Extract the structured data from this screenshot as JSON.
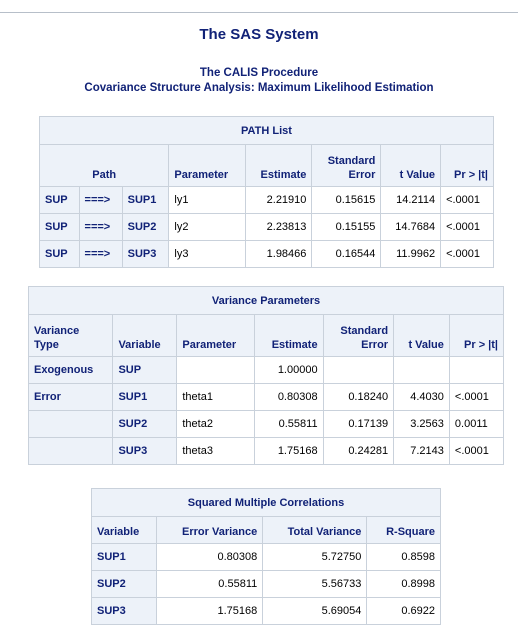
{
  "title": "The SAS System",
  "procedure": "The CALIS Procedure",
  "subtitle": "Covariance Structure Analysis: Maximum Likelihood Estimation",
  "path_list": {
    "caption": "PATH List",
    "headers": {
      "path": "Path",
      "parameter": "Parameter",
      "estimate": "Estimate",
      "stderr_line1": "Standard",
      "stderr_line2": "Error",
      "tvalue": "t Value",
      "pr": "Pr > |t|"
    },
    "rows": [
      {
        "from": "SUP",
        "arrow": "===>",
        "to": "SUP1",
        "parameter": "ly1",
        "estimate": "2.21910",
        "stderr": "0.15615",
        "tvalue": "14.2114",
        "pr": "<.0001"
      },
      {
        "from": "SUP",
        "arrow": "===>",
        "to": "SUP2",
        "parameter": "ly2",
        "estimate": "2.23813",
        "stderr": "0.15155",
        "tvalue": "14.7684",
        "pr": "<.0001"
      },
      {
        "from": "SUP",
        "arrow": "===>",
        "to": "SUP3",
        "parameter": "ly3",
        "estimate": "1.98466",
        "stderr": "0.16544",
        "tvalue": "11.9962",
        "pr": "<.0001"
      }
    ]
  },
  "variance": {
    "caption": "Variance Parameters",
    "headers": {
      "type_line1": "Variance",
      "type_line2": "Type",
      "variable": "Variable",
      "parameter": "Parameter",
      "estimate": "Estimate",
      "stderr_line1": "Standard",
      "stderr_line2": "Error",
      "tvalue": "t Value",
      "pr": "Pr > |t|"
    },
    "rows": [
      {
        "type": "Exogenous",
        "variable": "SUP",
        "parameter": "",
        "estimate": "1.00000",
        "stderr": "",
        "tvalue": "",
        "pr": ""
      },
      {
        "type": "Error",
        "variable": "SUP1",
        "parameter": "theta1",
        "estimate": "0.80308",
        "stderr": "0.18240",
        "tvalue": "4.4030",
        "pr": "<.0001"
      },
      {
        "type": "",
        "variable": "SUP2",
        "parameter": "theta2",
        "estimate": "0.55811",
        "stderr": "0.17139",
        "tvalue": "3.2563",
        "pr": "0.0011"
      },
      {
        "type": "",
        "variable": "SUP3",
        "parameter": "theta3",
        "estimate": "1.75168",
        "stderr": "0.24281",
        "tvalue": "7.2143",
        "pr": "<.0001"
      }
    ]
  },
  "smc": {
    "caption": "Squared Multiple Correlations",
    "headers": {
      "variable": "Variable",
      "error_variance": "Error Variance",
      "total_variance": "Total Variance",
      "rsquare": "R-Square"
    },
    "rows": [
      {
        "variable": "SUP1",
        "error_variance": "0.80308",
        "total_variance": "5.72750",
        "rsquare": "0.8598"
      },
      {
        "variable": "SUP2",
        "error_variance": "0.55811",
        "total_variance": "5.56733",
        "rsquare": "0.8998"
      },
      {
        "variable": "SUP3",
        "error_variance": "1.75168",
        "total_variance": "5.69054",
        "rsquare": "0.6922"
      }
    ]
  }
}
